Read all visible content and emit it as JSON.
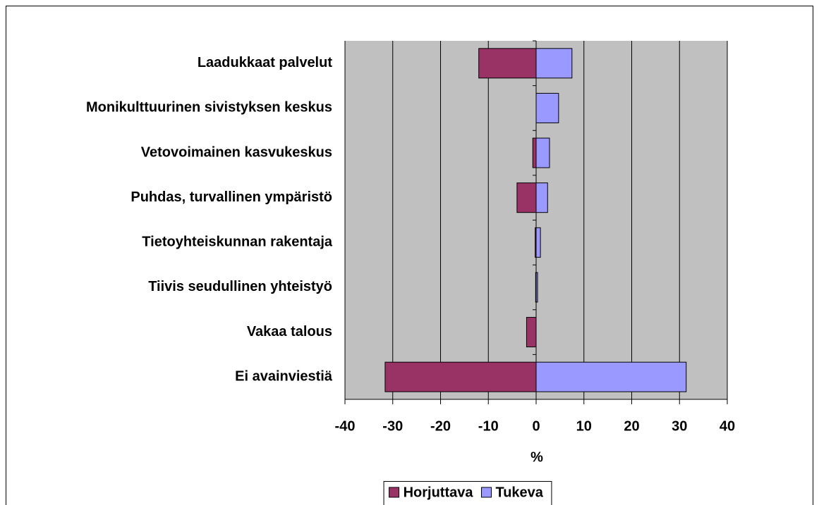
{
  "chart_data": {
    "type": "bar",
    "orientation": "horizontal",
    "categories": [
      "Laadukkaat palvelut",
      "Monikulttuurinen sivistyksen keskus",
      "Vetovoimainen kasvukeskus",
      "Puhdas, turvallinen ympäristö",
      "Tietoyhteiskunnan rakentaja",
      "Tiivis seudullinen yhteistyö",
      "Vakaa talous",
      "Ei avainviestiä"
    ],
    "series": [
      {
        "name": "Horjuttava",
        "color": "#993366",
        "values": [
          -12,
          0,
          -0.7,
          -4,
          -0.2,
          -0.1,
          -2,
          -31.6
        ]
      },
      {
        "name": "Tukeva",
        "color": "#9999ff",
        "values": [
          7.5,
          4.7,
          2.8,
          2.4,
          0.9,
          0.3,
          0,
          31.4
        ]
      }
    ],
    "x_label": "%",
    "xlim": [
      -40,
      40
    ],
    "xticks": [
      -40,
      -30,
      -20,
      -10,
      0,
      10,
      20,
      30,
      40
    ],
    "grid": true,
    "plot_background": "#c0c0c0",
    "legend": "bottom"
  }
}
